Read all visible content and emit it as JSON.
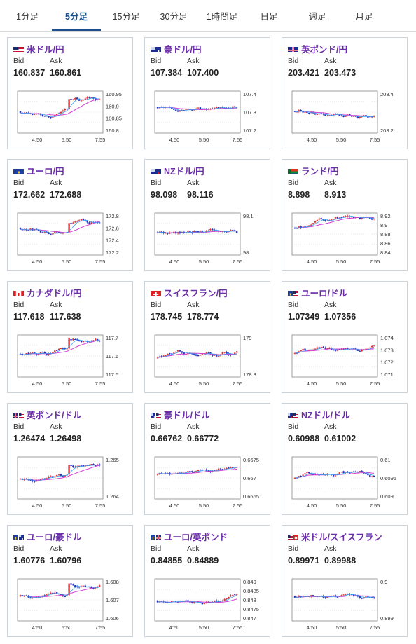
{
  "tabs": [
    {
      "label": "1分足",
      "active": false
    },
    {
      "label": "5分足",
      "active": true
    },
    {
      "label": "15分足",
      "active": false
    },
    {
      "label": "30分足",
      "active": false
    },
    {
      "label": "1時間足",
      "active": false
    },
    {
      "label": "日足",
      "active": false
    },
    {
      "label": "週足",
      "active": false
    },
    {
      "label": "月足",
      "active": false
    }
  ],
  "labels": {
    "bid": "Bid",
    "ask": "Ask"
  },
  "colors": {
    "up": "#e03030",
    "down": "#2030c0",
    "ma_fast": "#3aa0f0",
    "ma_slow": "#d040d0",
    "tab_active": "#1a4f8a",
    "pair_text": "#6a2ca8"
  },
  "cards": [
    {
      "pair": "米ドル/円",
      "flag": "us-flag",
      "bid": "160.837",
      "ask": "160.861",
      "yticks": [
        "160.95",
        "160.9",
        "160.85",
        "160.8"
      ],
      "xticks": [
        "4:50",
        "5:50",
        "7:55"
      ]
    },
    {
      "pair": "豪ドル/円",
      "flag": "au-flag",
      "bid": "107.384",
      "ask": "107.400",
      "yticks": [
        "107.4",
        "107.3",
        "107.2"
      ],
      "xticks": [
        "4:50",
        "5:50",
        "7:55"
      ]
    },
    {
      "pair": "英ポンド/円",
      "flag": "gb-flag",
      "bid": "203.421",
      "ask": "203.473",
      "yticks": [
        "203.4",
        "203.2"
      ],
      "xticks": [
        "4:50",
        "5:50",
        "7:55"
      ]
    },
    {
      "pair": "ユーロ/円",
      "flag": "eu-flag",
      "bid": "172.662",
      "ask": "172.688",
      "yticks": [
        "172.8",
        "172.6",
        "172.4",
        "172.2"
      ],
      "xticks": [
        "4:50",
        "5:50",
        "7:55"
      ]
    },
    {
      "pair": "NZドル/円",
      "flag": "nz-flag",
      "bid": "98.098",
      "ask": "98.116",
      "yticks": [
        "98.1",
        "98"
      ],
      "xticks": [
        "4:50",
        "5:50",
        "7:55"
      ]
    },
    {
      "pair": "ランド/円",
      "flag": "za-flag",
      "bid": "8.898",
      "ask": "8.913",
      "yticks": [
        "8.92",
        "8.9",
        "8.88",
        "8.86",
        "8.84"
      ],
      "xticks": [
        "4:50",
        "5:50",
        "7:55"
      ]
    },
    {
      "pair": "カナダドル/円",
      "flag": "ca-flag",
      "bid": "117.618",
      "ask": "117.638",
      "yticks": [
        "117.7",
        "117.6",
        "117.5"
      ],
      "xticks": [
        "4:50",
        "5:50",
        "7:55"
      ]
    },
    {
      "pair": "スイスフラン/円",
      "flag": "ch-flag",
      "bid": "178.745",
      "ask": "178.774",
      "yticks": [
        "179",
        "178.8"
      ],
      "xticks": [
        "4:50",
        "5:50",
        "7:55"
      ]
    },
    {
      "pair": "ユーロ/ドル",
      "flag": "eu-us-flag",
      "bid": "1.07349",
      "ask": "1.07356",
      "yticks": [
        "1.074",
        "1.073",
        "1.072",
        "1.071"
      ],
      "xticks": [
        "4:50",
        "5:50",
        "7:55"
      ]
    },
    {
      "pair": "英ポンド/ドル",
      "flag": "gb-us-flag",
      "bid": "1.26474",
      "ask": "1.26498",
      "yticks": [
        "1.265",
        "1.264"
      ],
      "xticks": [
        "4:50",
        "5:50",
        "7:55"
      ]
    },
    {
      "pair": "豪ドル/ドル",
      "flag": "au-us-flag",
      "bid": "0.66762",
      "ask": "0.66772",
      "yticks": [
        "0.6675",
        "0.667",
        "0.6665"
      ],
      "xticks": [
        "4:50",
        "5:50",
        "7:55"
      ]
    },
    {
      "pair": "NZドル/ドル",
      "flag": "nz-us-flag",
      "bid": "0.60988",
      "ask": "0.61002",
      "yticks": [
        "0.61",
        "0.6095",
        "0.609"
      ],
      "xticks": [
        "4:50",
        "5:50",
        "7:55"
      ]
    },
    {
      "pair": "ユーロ/豪ドル",
      "flag": "eu-au-flag",
      "bid": "1.60776",
      "ask": "1.60796",
      "yticks": [
        "1.608",
        "1.607",
        "1.606"
      ],
      "xticks": [
        "4:50",
        "5:50",
        "7:55"
      ]
    },
    {
      "pair": "ユーロ/英ポンド",
      "flag": "eu-gb-flag",
      "bid": "0.84855",
      "ask": "0.84889",
      "yticks": [
        "0.849",
        "0.8485",
        "0.848",
        "0.8475",
        "0.847"
      ],
      "xticks": [
        "4:50",
        "5:50",
        "7:55"
      ]
    },
    {
      "pair": "米ドル/スイスフラン",
      "flag": "us-ch-flag",
      "bid": "0.89971",
      "ask": "0.89988",
      "yticks": [
        "0.9",
        "0.899"
      ],
      "xticks": [
        "4:50",
        "5:50",
        "7:55"
      ]
    }
  ]
}
